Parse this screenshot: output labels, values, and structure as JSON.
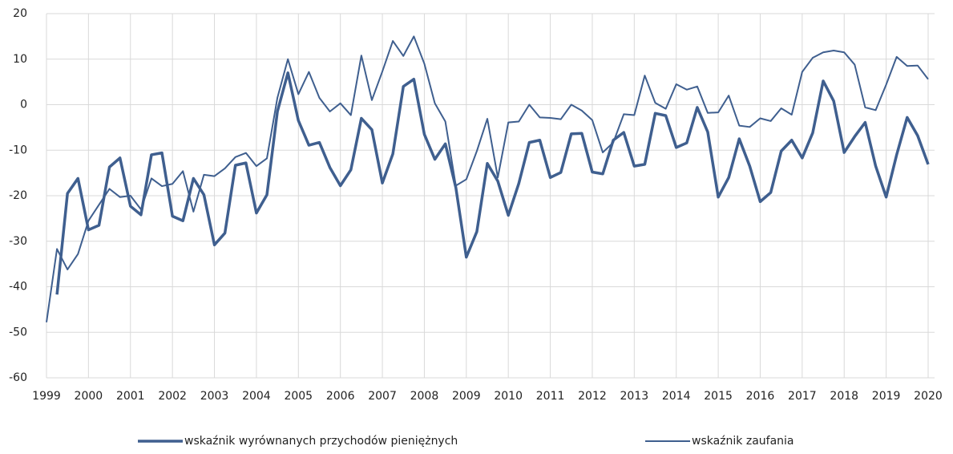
{
  "chart_data": {
    "type": "line",
    "x": [
      1999,
      1999.25,
      1999.5,
      1999.75,
      2000,
      2000.25,
      2000.5,
      2000.75,
      2001,
      2001.25,
      2001.5,
      2001.75,
      2002,
      2002.25,
      2002.5,
      2002.75,
      2003,
      2003.25,
      2003.5,
      2003.75,
      2004,
      2004.25,
      2004.5,
      2004.75,
      2005,
      2005.25,
      2005.5,
      2005.75,
      2006,
      2006.25,
      2006.5,
      2006.75,
      2007,
      2007.25,
      2007.5,
      2007.75,
      2008,
      2008.25,
      2008.5,
      2008.75,
      2009,
      2009.25,
      2009.5,
      2009.75,
      2010,
      2010.25,
      2010.5,
      2010.75,
      2011,
      2011.25,
      2011.5,
      2011.75,
      2012,
      2012.25,
      2012.5,
      2012.75,
      2013,
      2013.25,
      2013.5,
      2013.75,
      2014,
      2014.25,
      2014.5,
      2014.75,
      2015,
      2015.25,
      2015.5,
      2015.75,
      2016,
      2016.25,
      2016.5,
      2016.75,
      2017,
      2017.25,
      2017.5,
      2017.75,
      2018,
      2018.25,
      2018.5,
      2018.75,
      2019,
      2019.25,
      2019.5,
      2019.75,
      2020
    ],
    "series": [
      {
        "name": "wskaźnik wyrównanych przychodów pieniężnych",
        "color": "#3f5f8f",
        "width": 3.5,
        "values": [
          null,
          -41.7,
          -19.5,
          -16.2,
          -27.5,
          -26.5,
          -13.7,
          -11.7,
          -22.3,
          -24.2,
          -11,
          -10.6,
          -24.5,
          -25.5,
          -16.2,
          -19.8,
          -30.8,
          -28.2,
          -13.3,
          -12.8,
          -23.8,
          -19.8,
          -1.5,
          7,
          -3.5,
          -8.9,
          -8.3,
          -13.8,
          -17.8,
          -14.3,
          -3,
          -5.5,
          -17.2,
          -10.8,
          4,
          5.6,
          -6.5,
          -12,
          -8.6,
          -18.2,
          -33.5,
          -27.9,
          -12.9,
          -16.8,
          -24.3,
          -17.3,
          -8.3,
          -7.8,
          -16,
          -14.9,
          -6.4,
          -6.3,
          -14.8,
          -15.2,
          -7.8,
          -6.1,
          -13.5,
          -13.1,
          -1.9,
          -2.4,
          -9.4,
          -8.4,
          -0.6,
          -6,
          -20.3,
          -16,
          -7.5,
          -13.5,
          -21.3,
          -19.3,
          -10.2,
          -7.8,
          -11.7,
          -6.2,
          5.2,
          0.8,
          -10.5,
          -7,
          -3.9,
          -13.5,
          -20.3,
          -11,
          -2.8,
          -6.8,
          -13.1
        ]
      },
      {
        "name": "wskaźnik zaufania",
        "color": "#3f5f8f",
        "width": 2,
        "values": [
          -47.8,
          -31.7,
          -36.2,
          -32.8,
          -25.5,
          -22,
          -18.5,
          -20.3,
          -20,
          -23,
          -16.2,
          -17.9,
          -17.4,
          -14.6,
          -23.5,
          -15.4,
          -15.7,
          -14,
          -11.5,
          -10.6,
          -13.5,
          -11.8,
          1.5,
          10,
          2.3,
          7.2,
          1.5,
          -1.5,
          0.3,
          -2.3,
          10.8,
          1,
          7.3,
          14,
          10.7,
          15,
          9,
          0.3,
          -3.7,
          -17.8,
          -16.4,
          -10.2,
          -3.1,
          -16,
          -3.9,
          -3.7,
          0,
          -2.8,
          -2.9,
          -3.2,
          0,
          -1.3,
          -3.4,
          -10.5,
          -8.3,
          -2.1,
          -2.3,
          6.4,
          0.4,
          -0.9,
          4.5,
          3.3,
          4,
          -1.8,
          -1.7,
          2,
          -4.6,
          -4.9,
          -3,
          -3.6,
          -0.8,
          -2.2,
          7.2,
          10.3,
          11.5,
          11.9,
          11.5,
          8.8,
          -0.6,
          -1.2,
          4.4,
          10.5,
          8.5,
          8.6,
          5.6
        ]
      }
    ],
    "xlim": [
      1999,
      2020
    ],
    "xticks": [
      1999,
      2000,
      2001,
      2002,
      2003,
      2004,
      2005,
      2006,
      2007,
      2008,
      2009,
      2010,
      2011,
      2012,
      2013,
      2014,
      2015,
      2016,
      2017,
      2018,
      2019,
      2020
    ],
    "ylim": [
      -60,
      20
    ],
    "yticks": [
      -60,
      -50,
      -40,
      -30,
      -20,
      -10,
      0,
      10,
      20
    ],
    "grid": true,
    "legend": "bottom"
  }
}
